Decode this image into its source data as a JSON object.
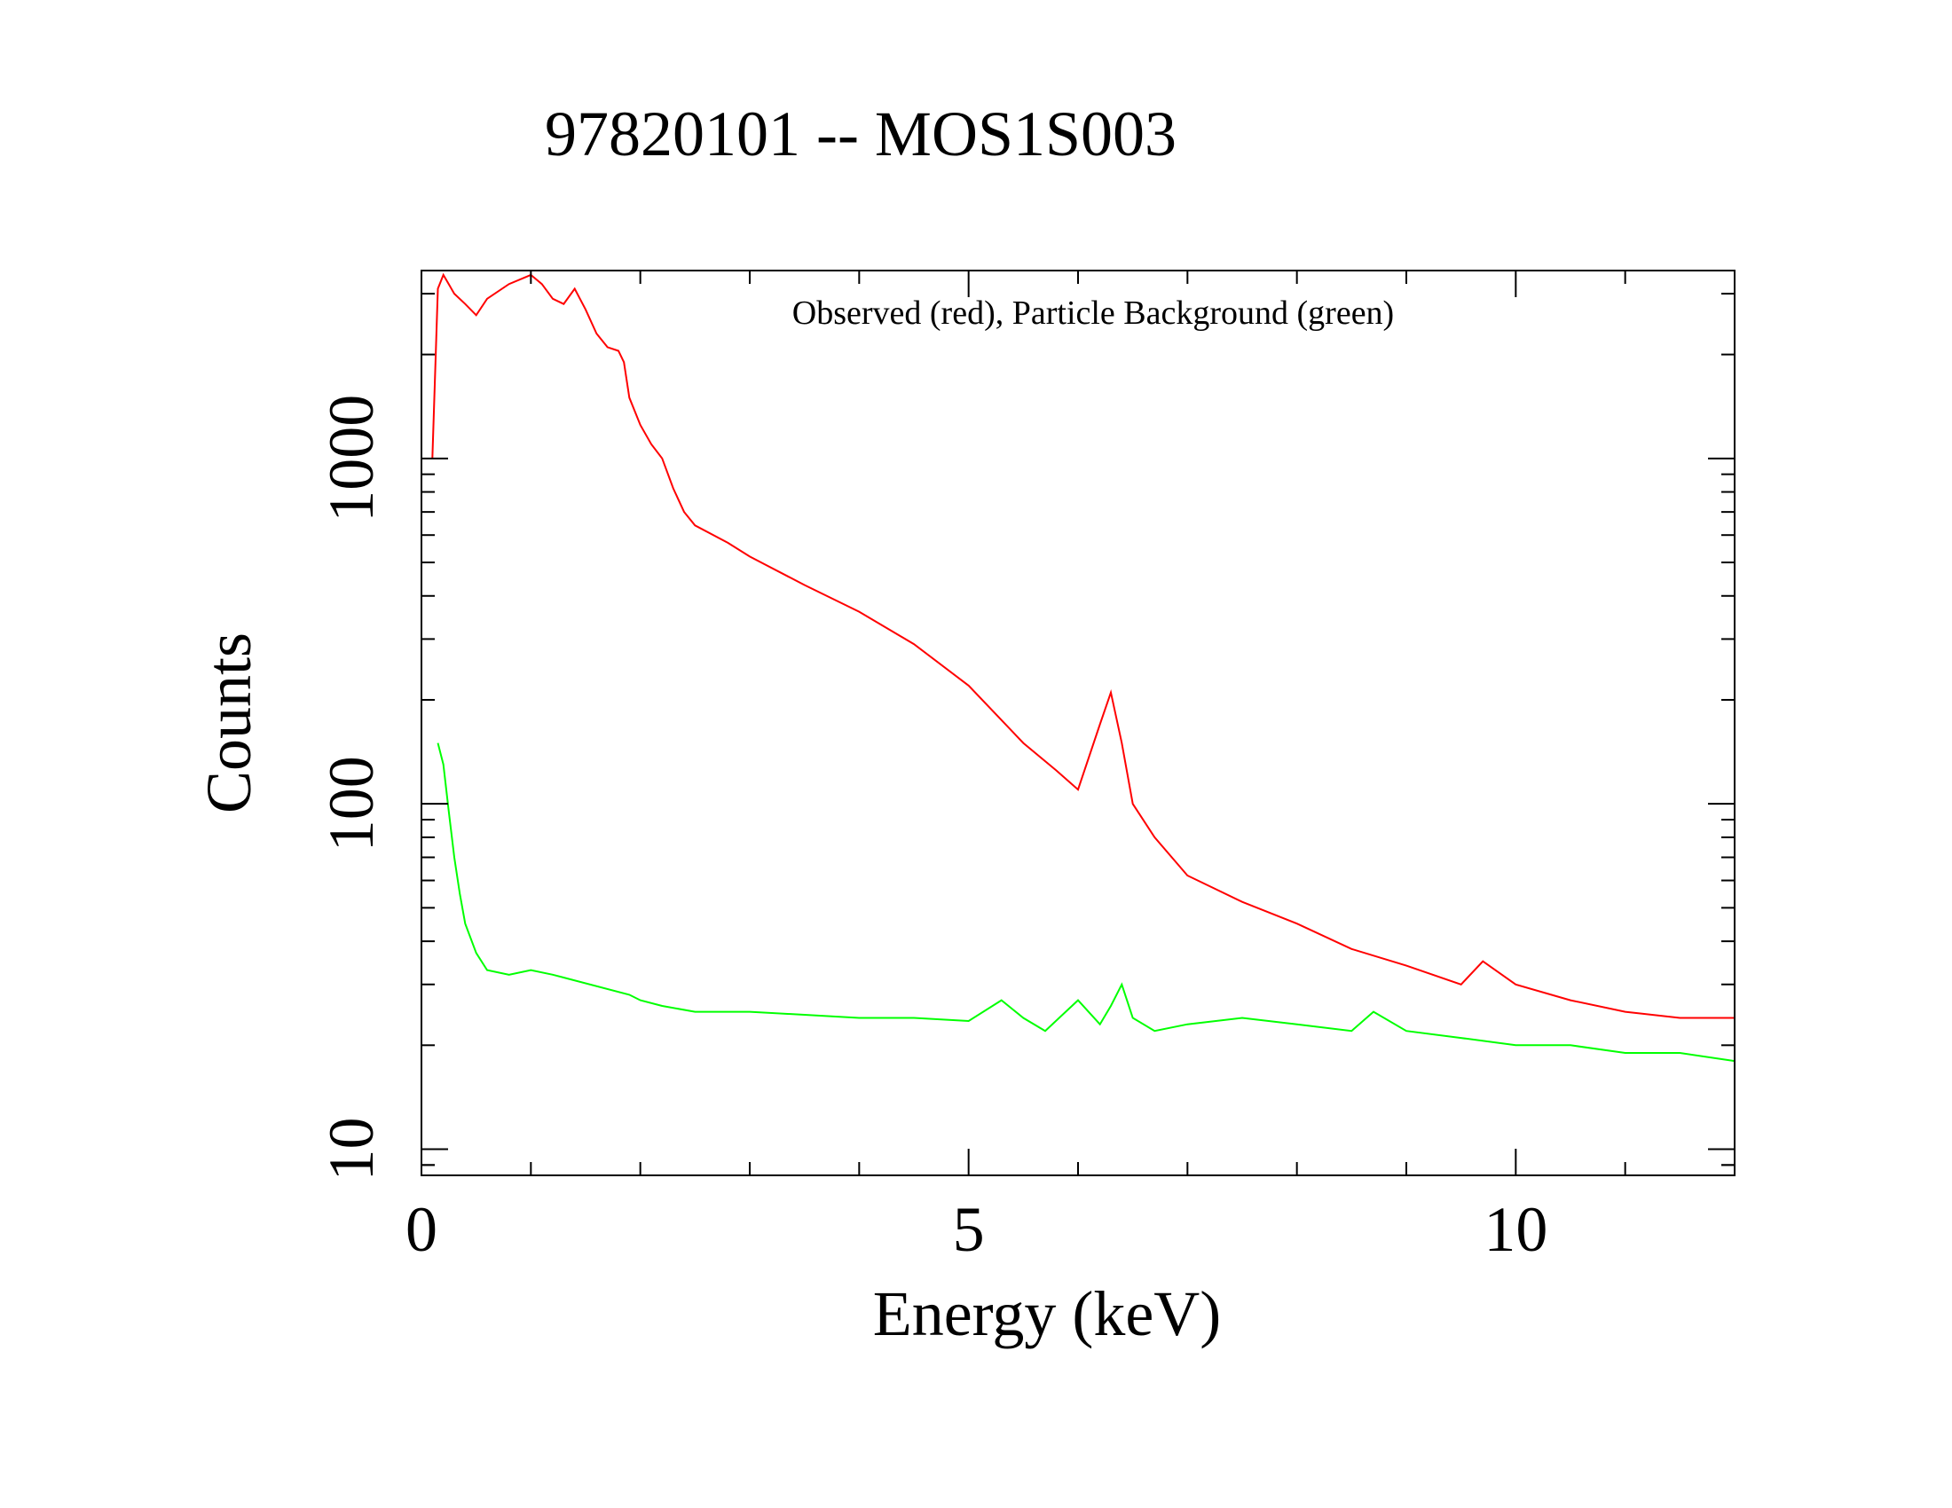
{
  "chart_data": {
    "type": "line",
    "title": "97820101 -- MOS1S003",
    "xlabel": "Energy (keV)",
    "ylabel": "Counts",
    "annotation": "Observed (red), Particle Background (green)",
    "xlim": [
      0,
      12
    ],
    "ylim": [
      8.4,
      3500
    ],
    "yscale": "log",
    "x_ticks": [
      0,
      5,
      10
    ],
    "x_tick_labels": [
      "0",
      "5",
      "10"
    ],
    "y_ticks": [
      10,
      100,
      1000
    ],
    "y_tick_labels": [
      "10",
      "100",
      "1000"
    ],
    "grid": false,
    "colors": {
      "observed": "#ff0000",
      "background": "#00ff00",
      "axes": "#000000"
    },
    "series": [
      {
        "key": "observed",
        "color": "#ff0000",
        "x": [
          0.1,
          0.15,
          0.2,
          0.3,
          0.4,
          0.5,
          0.6,
          0.8,
          1.0,
          1.1,
          1.2,
          1.3,
          1.4,
          1.5,
          1.6,
          1.7,
          1.8,
          1.85,
          1.9,
          2.0,
          2.1,
          2.2,
          2.3,
          2.4,
          2.5,
          2.8,
          3.0,
          3.5,
          4.0,
          4.5,
          5.0,
          5.5,
          5.8,
          6.0,
          6.2,
          6.3,
          6.4,
          6.5,
          6.7,
          7.0,
          7.5,
          8.0,
          8.5,
          9.0,
          9.5,
          9.7,
          10.0,
          10.5,
          11.0,
          11.5,
          12.0
        ],
        "y": [
          1000,
          3100,
          3400,
          3000,
          2800,
          2600,
          2900,
          3200,
          3400,
          3200,
          2900,
          2800,
          3100,
          2700,
          2300,
          2100,
          2050,
          1900,
          1500,
          1250,
          1100,
          1000,
          820,
          700,
          640,
          570,
          520,
          430,
          360,
          290,
          220,
          150,
          125,
          110,
          170,
          210,
          150,
          100,
          80,
          62,
          52,
          45,
          38,
          34,
          30,
          35,
          30,
          27,
          25,
          24,
          24
        ]
      },
      {
        "key": "background",
        "color": "#00ff00",
        "x": [
          0.15,
          0.2,
          0.25,
          0.3,
          0.35,
          0.4,
          0.5,
          0.6,
          0.8,
          1.0,
          1.2,
          1.9,
          2.0,
          2.2,
          2.5,
          3.0,
          3.5,
          4.0,
          4.5,
          5.0,
          5.3,
          5.5,
          5.7,
          6.0,
          6.2,
          6.3,
          6.4,
          6.5,
          6.7,
          7.0,
          7.5,
          8.0,
          8.5,
          8.7,
          9.0,
          9.5,
          10.0,
          10.5,
          11.0,
          11.5,
          12.0
        ],
        "y": [
          150,
          130,
          95,
          70,
          55,
          45,
          37,
          33,
          32,
          33,
          32,
          28,
          27,
          26,
          25,
          25,
          24.5,
          24,
          24,
          23.5,
          27,
          24,
          22,
          27,
          23,
          26,
          30,
          24,
          22,
          23,
          24,
          23,
          22,
          25,
          22,
          21,
          20,
          20,
          19,
          19,
          18
        ]
      }
    ]
  }
}
